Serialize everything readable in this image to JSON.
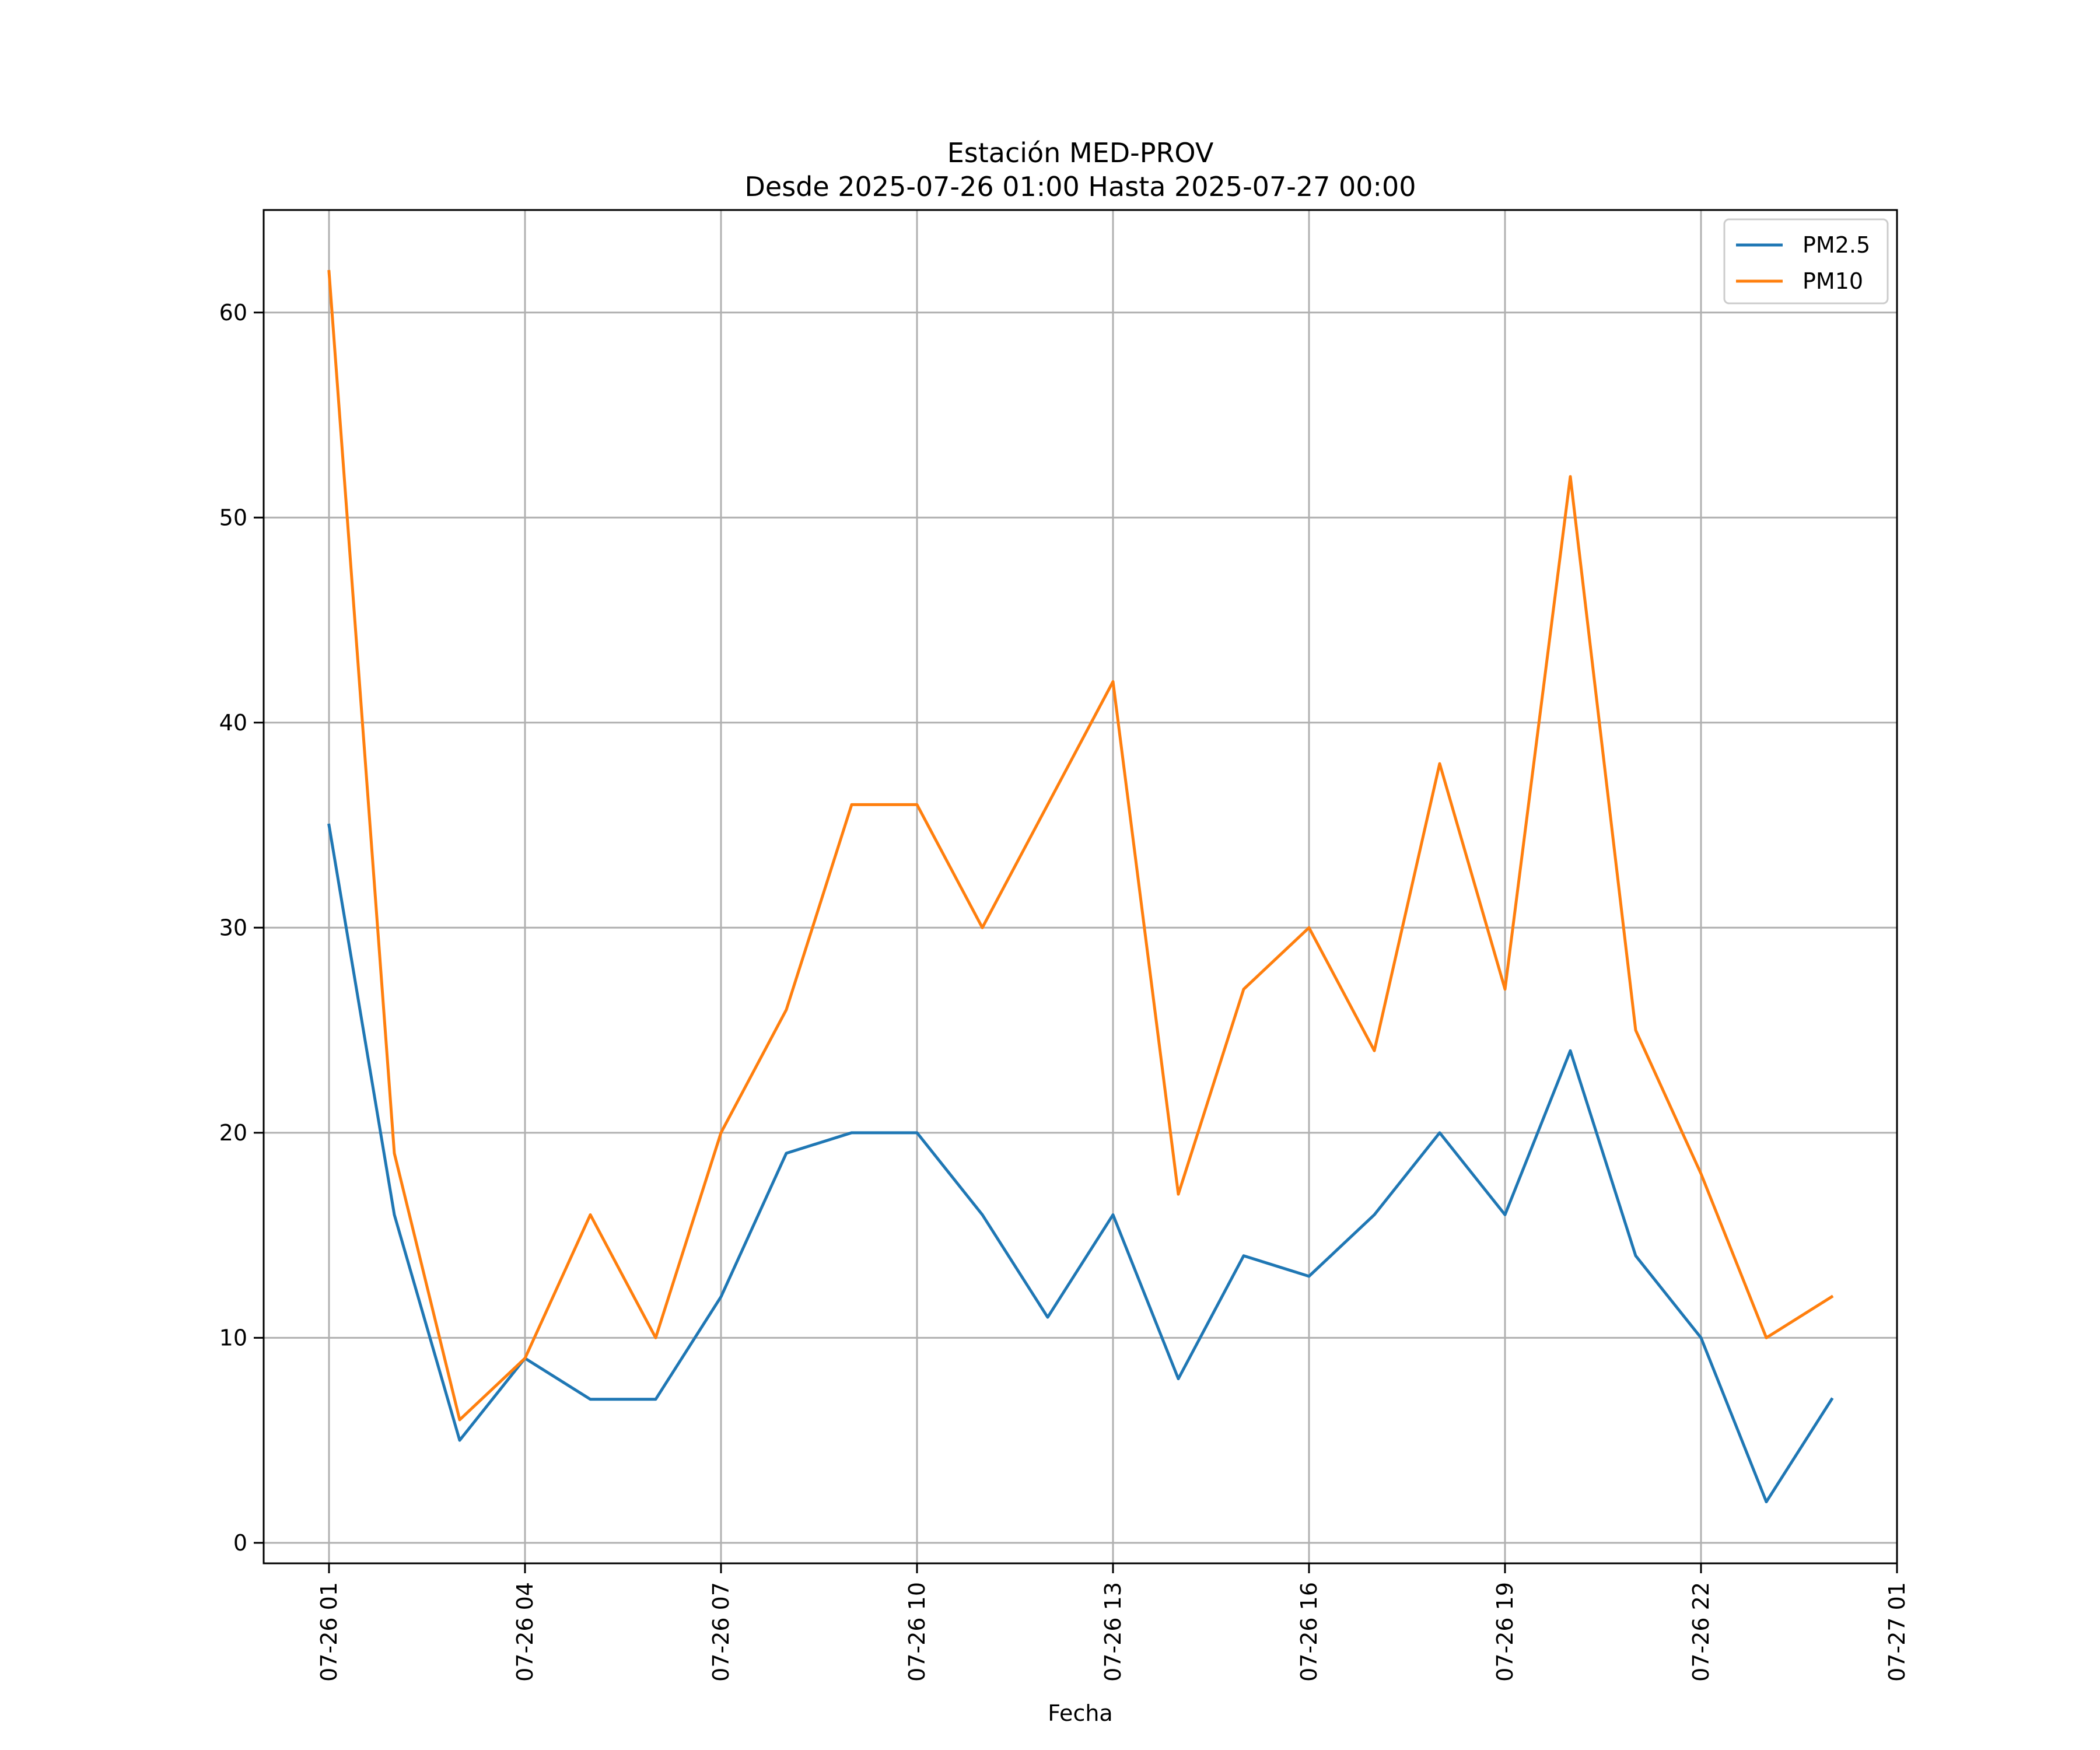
{
  "chart_data": {
    "type": "line",
    "title": "Estación MED-PROV",
    "subtitle": "Desde 2025-07-26 01:00 Hasta 2025-07-27 00:00",
    "xlabel": "Fecha",
    "ylabel": "",
    "x": [
      "2025-07-26 01:00",
      "2025-07-26 02:00",
      "2025-07-26 03:00",
      "2025-07-26 04:00",
      "2025-07-26 05:00",
      "2025-07-26 06:00",
      "2025-07-26 07:00",
      "2025-07-26 08:00",
      "2025-07-26 09:00",
      "2025-07-26 10:00",
      "2025-07-26 11:00",
      "2025-07-26 12:00",
      "2025-07-26 13:00",
      "2025-07-26 14:00",
      "2025-07-26 15:00",
      "2025-07-26 16:00",
      "2025-07-26 17:00",
      "2025-07-26 18:00",
      "2025-07-26 19:00",
      "2025-07-26 20:00",
      "2025-07-26 21:00",
      "2025-07-26 22:00",
      "2025-07-26 23:00",
      "2025-07-27 00:00"
    ],
    "x_ticks": [
      {
        "label": "07-26 01",
        "at": "2025-07-26 01:00"
      },
      {
        "label": "07-26 04",
        "at": "2025-07-26 04:00"
      },
      {
        "label": "07-26 07",
        "at": "2025-07-26 07:00"
      },
      {
        "label": "07-26 10",
        "at": "2025-07-26 10:00"
      },
      {
        "label": "07-26 13",
        "at": "2025-07-26 13:00"
      },
      {
        "label": "07-26 16",
        "at": "2025-07-26 16:00"
      },
      {
        "label": "07-26 19",
        "at": "2025-07-26 19:00"
      },
      {
        "label": "07-26 22",
        "at": "2025-07-26 22:00"
      },
      {
        "label": "07-27 01",
        "at": "2025-07-27 01:00"
      }
    ],
    "xlim": [
      "2025-07-26 00:00",
      "2025-07-27 01:00"
    ],
    "y_ticks": [
      0,
      10,
      20,
      30,
      40,
      50,
      60
    ],
    "ylim": [
      -1,
      65
    ],
    "grid": true,
    "legend_position": "top-right",
    "series": [
      {
        "name": "PM2.5",
        "color": "#1f77b4",
        "values": [
          35,
          16,
          5,
          9,
          7,
          7,
          12,
          19,
          20,
          20,
          16,
          11,
          16,
          8,
          14,
          13,
          16,
          20,
          16,
          24,
          14,
          10,
          2,
          7
        ]
      },
      {
        "name": "PM10",
        "color": "#ff7f0e",
        "values": [
          62,
          19,
          6,
          9,
          16,
          10,
          20,
          26,
          36,
          36,
          30,
          36,
          42,
          17,
          27,
          30,
          24,
          38,
          27,
          52,
          25,
          18,
          10,
          12
        ]
      }
    ]
  }
}
